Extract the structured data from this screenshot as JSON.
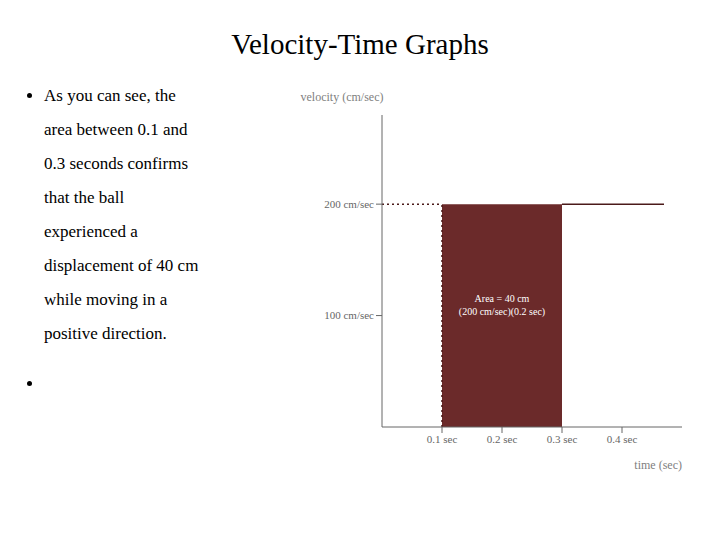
{
  "chart_data": {
    "type": "line",
    "title": "Velocity-Time Graphs",
    "bullets": [
      [
        "As you can see, the",
        "area between 0.1 and",
        "0.3 seconds confirms",
        "that the ball",
        "experienced a",
        "displacement of 40 cm",
        "while moving in a",
        "positive direction."
      ],
      []
    ],
    "xlabel": "time (sec)",
    "ylabel": "velocity (cm/sec)",
    "xlim": [
      0,
      0.5
    ],
    "ylim": [
      0,
      280
    ],
    "xticks": [
      {
        "value": 0.1,
        "label": "0.1 sec"
      },
      {
        "value": 0.2,
        "label": "0.2 sec"
      },
      {
        "value": 0.3,
        "label": "0.3 sec"
      },
      {
        "value": 0.4,
        "label": "0.4 sec"
      }
    ],
    "yticks": [
      {
        "value": 100,
        "label": "100 cm/sec"
      },
      {
        "value": 200,
        "label": "200 cm/sec"
      }
    ],
    "grid": false,
    "series": [
      {
        "type": "area",
        "color": "#6B2A2A",
        "x": [
          0.1,
          0.3
        ],
        "values": [
          200,
          200
        ]
      },
      {
        "type": "line",
        "line_style": "dotted",
        "color": "#4B1A1A",
        "x": [
          0,
          0.1
        ],
        "values": [
          200,
          200
        ]
      },
      {
        "type": "line",
        "line_style": "dotted",
        "color": "#4B1A1A",
        "x": [
          0.1,
          0.1
        ],
        "values": [
          0,
          200
        ]
      },
      {
        "type": "line",
        "line_style": "solid",
        "color": "#4B1A1A",
        "x": [
          0.3,
          0.47
        ],
        "values": [
          200,
          200
        ]
      }
    ],
    "annotations": [
      {
        "lines": [
          "Area = 40 cm",
          "(200 cm/sec)(0.2 sec)"
        ],
        "x": 0.2,
        "y": 110,
        "color": "#ffffff"
      }
    ]
  }
}
